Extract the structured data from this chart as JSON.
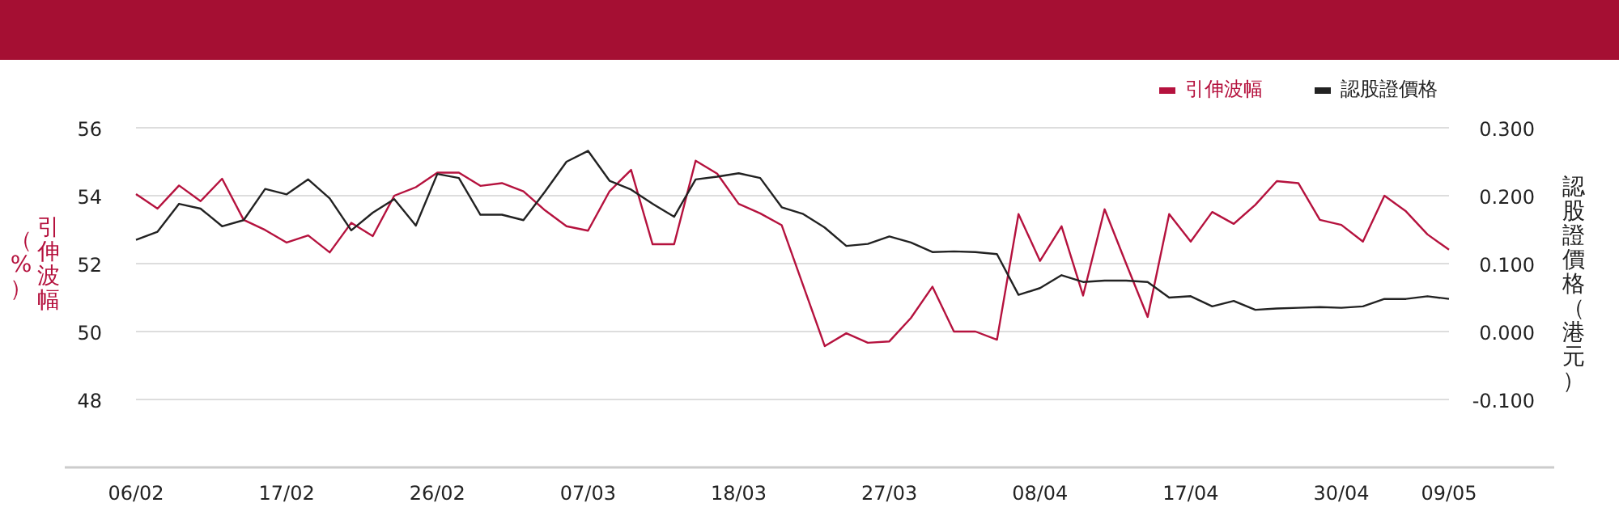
{
  "chart_data": {
    "type": "line",
    "categories": [
      "06/02",
      null,
      null,
      null,
      null,
      null,
      null,
      "17/02",
      null,
      null,
      null,
      null,
      null,
      null,
      "26/02",
      null,
      null,
      null,
      null,
      null,
      null,
      "07/03",
      null,
      null,
      null,
      null,
      null,
      null,
      "18/03",
      null,
      null,
      null,
      null,
      null,
      null,
      "27/03",
      null,
      null,
      null,
      null,
      null,
      null,
      "08/04",
      null,
      null,
      null,
      null,
      null,
      null,
      "17/04",
      null,
      null,
      null,
      null,
      null,
      null,
      "30/04",
      null,
      null,
      null,
      null,
      "09/05"
    ],
    "series": [
      {
        "name": "引伸波幅",
        "color": "#b5123e",
        "values": [
          54.05,
          53.62,
          54.3,
          53.84,
          54.5,
          53.29,
          52.99,
          52.62,
          52.83,
          52.33,
          53.2,
          52.81,
          54.0,
          54.25,
          54.68,
          54.68,
          54.29,
          54.37,
          54.13,
          53.57,
          53.1,
          52.97,
          54.13,
          54.76,
          52.57,
          52.57,
          55.03,
          54.65,
          53.76,
          53.48,
          53.13,
          51.35,
          49.57,
          49.95,
          49.67,
          49.71,
          50.4,
          51.32,
          50.0,
          50.0,
          49.76,
          53.46,
          52.08,
          53.1,
          51.06,
          53.6,
          52.0,
          50.43,
          53.46,
          52.65,
          53.52,
          53.17,
          53.73,
          54.43,
          54.37,
          53.29,
          53.14,
          52.65,
          54.0,
          53.54,
          52.86,
          52.41
        ]
      },
      {
        "name": "認股證價格",
        "color": "#222222",
        "axis": "y2",
        "values": [
          0.135,
          0.147,
          0.188,
          0.181,
          0.155,
          0.164,
          0.21,
          0.202,
          0.224,
          0.196,
          0.149,
          0.175,
          0.195,
          0.156,
          0.232,
          0.226,
          0.172,
          0.172,
          0.164,
          0.206,
          0.25,
          0.266,
          0.222,
          0.209,
          0.188,
          0.169,
          0.224,
          0.228,
          0.233,
          0.226,
          0.183,
          0.173,
          0.153,
          0.126,
          0.129,
          0.14,
          0.131,
          0.117,
          0.118,
          0.117,
          0.114,
          0.054,
          0.064,
          0.083,
          0.073,
          0.075,
          0.075,
          0.073,
          0.05,
          0.052,
          0.037,
          0.045,
          0.032,
          0.034,
          0.035,
          0.036,
          0.035,
          0.037,
          0.048,
          0.048,
          0.052,
          0.048
        ]
      }
    ],
    "ylabel": "引伸波幅（%）",
    "y2label": "認股證價格（港元）",
    "ylim": [
      46,
      56
    ],
    "yticks": [
      48,
      50,
      52,
      54,
      56
    ],
    "y2lim": [
      -0.2,
      0.3
    ],
    "y2ticks": [
      {
        "value": -0.1,
        "label": "-0.100"
      },
      {
        "value": 0,
        "label": "0.000"
      },
      {
        "value": 0.1,
        "label": "0.100"
      },
      {
        "value": 0.2,
        "label": "0.200"
      },
      {
        "value": 0.3,
        "label": "0.300"
      }
    ],
    "grid": "y",
    "legend": "top right"
  }
}
